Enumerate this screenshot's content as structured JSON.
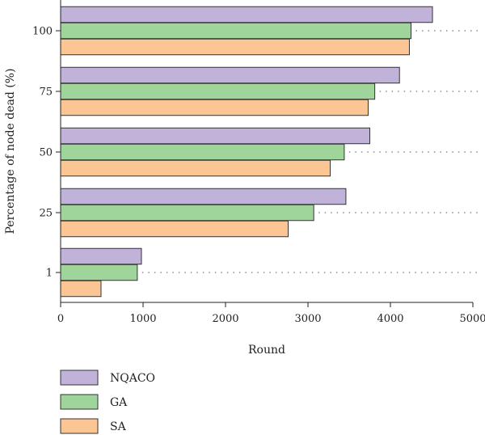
{
  "chart_data": {
    "type": "bar",
    "orientation": "horizontal",
    "categories": [
      "1",
      "25",
      "50",
      "75",
      "100"
    ],
    "series": [
      {
        "name": "NQACO",
        "color": "#c0b2d8",
        "values": [
          980,
          3460,
          3750,
          4110,
          4510
        ]
      },
      {
        "name": "GA",
        "color": "#9fd49b",
        "values": [
          930,
          3070,
          3440,
          3810,
          4250
        ]
      },
      {
        "name": "SA",
        "color": "#fbc693",
        "values": [
          490,
          2760,
          3270,
          3730,
          4230
        ]
      }
    ],
    "xlabel": "Round",
    "ylabel": "Percentage of node dead (%)",
    "xlim": [
      0,
      5000
    ],
    "xticks": [
      "0",
      "1000",
      "2000",
      "3000",
      "4000",
      "5000"
    ],
    "grid": "dotted reference line at each category",
    "legend_position": "bottom-left"
  }
}
